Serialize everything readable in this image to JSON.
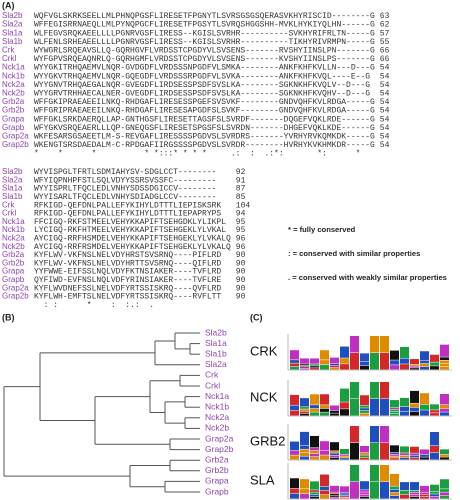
{
  "panel_a": {
    "label": "(A)",
    "block1": {
      "rows": [
        {
          "name": "Sla2b",
          "seq": "WQFVGLSKRKSEELLMLPHNQPGSFLIRESETFPGNYTLSVRSGSGSQERASVKHYRISCID--------G",
          "end": 63
        },
        {
          "name": "Sla2a",
          "seq": "WFFEGISRRNAEQLLMLPYNQPGCFLIRESETFPGSYTLSVRQSHGGSHH-MVKLHYKIYQLHN------G",
          "end": 62
        },
        {
          "name": "Sla1a",
          "seq": "WLFEGVSRQKAEELLLLPGNRVGSFLIRESS--KGISLSVRHR----------SVKHYRIFRLTN-----G",
          "end": 57
        },
        {
          "name": "Sla1b",
          "seq": "WLFENLSRHEAEELLLLPGNRVGSFLIRESS--KGISLSVRHR----------TIKHYRIVRMPN-----G",
          "end": 55
        },
        {
          "name": "Crk",
          "seq": "WYWGRLSRQEAVSLLQ-GQRHGVFLVRDSSTCPGDYVLSVSENS-------RVSHYIINSLPN-------G",
          "end": 66
        },
        {
          "name": "Crkl",
          "seq": "WYFGPVSRQEAQNRLQ-GQRHGMFLVRDSSTCPGDYVLSVSENS-------KVSHYIINSLPS-------G",
          "end": 66
        },
        {
          "name": "Nck1a",
          "seq": "WYYGKITRHQAEMVLNQR-GVDGDFLVRDSSSNPGDFVLSMKA--------ANKFKHFKVLLN---D---G",
          "end": 54
        },
        {
          "name": "Nck1b",
          "seq": "WYYGKVTRHQAEMVLNQR-GQEGDFLVRDSSSRPGDFVLSVKA--------ANKFKHFKVQL----E--G",
          "end": 54
        },
        {
          "name": "Nck2a",
          "seq": "WYYGNVTRHQAEGALNQR-GVEGDFLIRDSESSPSDFSVSLKA--------SGKNKHFKVQLV--D---G",
          "end": 54
        },
        {
          "name": "Nck2b",
          "seq": "WYYGRVTRHHAECALNER-GVEGDFLIRDSESSPSDFSVSLKA--------SGKNKHFKVQHV--D---G",
          "end": 54
        },
        {
          "name": "Grb2a",
          "seq": "WFFGKIPRAEAEEILNKQ-RHDGAFLIRESESSPGEFSVSVKF--------GNDVQHFKVLRDGA-----G",
          "end": 54
        },
        {
          "name": "Grb2b",
          "seq": "WFFGRIPRAEAEEILNKQ-RHDGAFLIRESESAPGDFSLSVKF--------GNDVQHFKVLRDGA-----G",
          "end": 54
        },
        {
          "name": "Grapa",
          "seq": "WFFGKLSRKDAERQLLAP-GNTHGSFLIRESETTAGSFSLSVRDF-------DQGEFVQKLRDE------G",
          "end": 54
        },
        {
          "name": "Grapb",
          "seq": "WFYGKVSRQEAERLLLQP-GNEQGSFLIRESETSPGSFSLSVRDN-------DHGEFVQKLKDE------G",
          "end": 54
        },
        {
          "name": "Grap2a",
          "seq": "WKFESARSGSAEETLM-S-REVGAFLIRESSSSPGDVSLSVRDRS-------YVRHYRVKQMKDK-----G",
          "end": 54
        },
        {
          "name": "Grap2b",
          "seq": "WKENGTSRSDAEDALM-C-RPDGAFIIRGSSSSPGDVSLSVRDR--------HVRHYKVKHMKDR-----G",
          "end": 54
        }
      ],
      "conservation": "*    *      *          * *:::* * * *     .:  :  .:*:       *:      *"
    },
    "block2": {
      "rows": [
        {
          "name": "Sla2b",
          "seq": "WYVISPGLTFRTLSDMIAHYSV-SDGLCCT--------",
          "end": 92
        },
        {
          "name": "Sla2a",
          "seq": "WFYIQPNHPFSTLSQLVDYYSSRSVSSFC---------",
          "end": 91
        },
        {
          "name": "Sla1a",
          "seq": "WYYISPRLTFQCLEDLVNHYSDSSDGICCV--------",
          "end": 87
        },
        {
          "name": "Sla1b",
          "seq": "WYYISARLTFQCLEDLVNHYSDIADGLCCV--------",
          "end": 85
        },
        {
          "name": "Crk",
          "seq": "RFKIGD-QEFDNLPALLEFYKIHYLDTTTLIEPISKSRK",
          "end": 104
        },
        {
          "name": "Crkl",
          "seq": "RFKIGD-QEFDNLPALLEFYKIHYLDTTTLIEPAPRYPS",
          "end": 94
        },
        {
          "name": "Nck1a",
          "seq": "FFCIGQ-RKFSTMEELVEHYKKAPIFTSEHGDKLYLIKPL",
          "end": 95
        },
        {
          "name": "Nck1b",
          "seq": "LYCIGQ-RKFHTMEELVEHYKKAPIFTSEHGEKLYLVKAL",
          "end": 95
        },
        {
          "name": "Nck2a",
          "seq": "AYCIGQ-RRFHSMDELVEHYKKAPIFTSEHGEKLYLVKALQ",
          "end": 96
        },
        {
          "name": "Nck2b",
          "seq": "AYCIGQ-RRFRSMDELVEHYKKAPIFTSEHGEKLYLVKALQ",
          "end": 96
        },
        {
          "name": "Grb2a",
          "seq": "KYFLWV-VKFNSLNELVDYHRSTSVSRNQ----PIFLRD",
          "end": 90
        },
        {
          "name": "Grb2b",
          "seq": "KYFLWV-VKFNSLNELVDYHRTTSVSRNQ----QIFLRD",
          "end": 90
        },
        {
          "name": "Grapa",
          "seq": "YYFWWE-EIFSSLNQLVDYFKTNSIAKER----TVFLRD",
          "end": 90
        },
        {
          "name": "Grapb",
          "seq": "QYFIWD-EVFNSLNQLVDFYRINSIAKER----TVFLRE",
          "end": 90
        },
        {
          "name": "Grap2a",
          "seq": "KYFLWVDNEFSSLNELVDFYRTSSISKRQ----QVFLRD",
          "end": 90
        },
        {
          "name": "Grap2b",
          "seq": "KYFLWH-EMFTSLNELVDFYRTSSISKRQ----RVFLTT",
          "end": 90
        }
      ],
      "conservation": "  : :      *    :  :.:  ."
    },
    "legend": [
      "* = fully conserved",
      ": = conserved with similar properties",
      ". = conserved with weakly similar properties"
    ]
  },
  "panel_b": {
    "label": "(B)",
    "leaves": [
      "Sla2b",
      "Sla1a",
      "Sla1b",
      "Sla2a",
      "Crk",
      "Crkl",
      "Nck1a",
      "Nck1b",
      "Nck2a",
      "Nck2b",
      "Grap2a",
      "Grap2b",
      "Grb2a",
      "Grb2b",
      "Grapa",
      "Grapb"
    ]
  },
  "panel_c": {
    "label": "(C)",
    "logos": [
      "CRK",
      "NCK",
      "GRB2",
      "SLA"
    ]
  }
}
